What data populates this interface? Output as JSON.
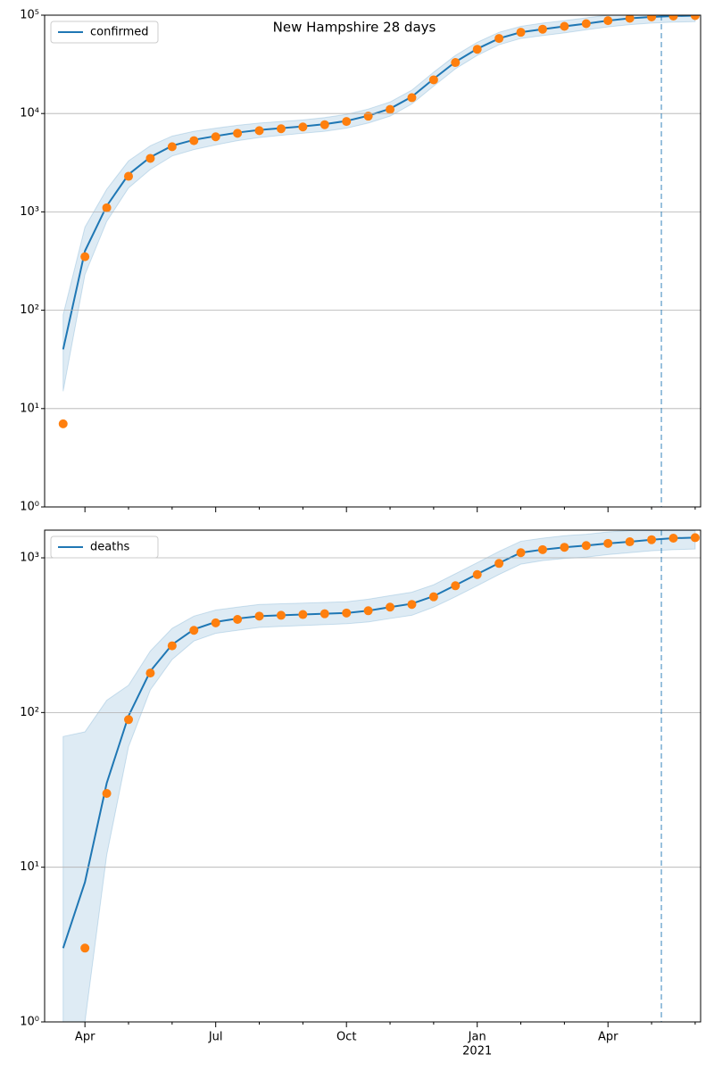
{
  "chart_data": [
    {
      "type": "line",
      "title": "New Hampshire 28 days",
      "log": true,
      "grid": "y",
      "legend": "upper left",
      "ylim": [
        1,
        100000
      ],
      "yticks": [
        {
          "value": 1,
          "label": "10⁰"
        },
        {
          "value": 10,
          "label": "10¹"
        },
        {
          "value": 100,
          "label": "10²"
        },
        {
          "value": 1000,
          "label": "10³"
        },
        {
          "value": 10000,
          "label": "10⁴"
        },
        {
          "value": 100000,
          "label": "10⁵"
        }
      ],
      "series": [
        {
          "name": "confirmed",
          "color": "#1f77b4",
          "values": [
            40,
            400,
            1150,
            2400,
            3600,
            4700,
            5400,
            5900,
            6400,
            6800,
            7100,
            7400,
            7800,
            8400,
            9500,
            11200,
            14800,
            22500,
            33500,
            45500,
            58000,
            67000,
            72000,
            77000,
            82000,
            88000,
            93000,
            96000,
            98000,
            99000
          ]
        },
        {
          "color": "#ff7f0e",
          "style": "marker",
          "values": [
            7,
            350,
            1100,
            2300,
            3500,
            4600,
            5300,
            5800,
            6300,
            6700,
            7000,
            7300,
            7700,
            8300,
            9400,
            11000,
            14500,
            22000,
            33000,
            45000,
            58000,
            67000,
            72000,
            77000,
            82000,
            88000,
            93000,
            96000,
            98000,
            99000
          ]
        }
      ],
      "band": {
        "color": "#1f77b4",
        "lower": [
          15,
          230,
          800,
          1750,
          2700,
          3700,
          4300,
          4800,
          5300,
          5700,
          6000,
          6300,
          6600,
          7100,
          8000,
          9400,
          12500,
          19000,
          28500,
          39000,
          50000,
          58000,
          62000,
          66000,
          71000,
          76000,
          80000,
          83000,
          85000,
          86000
        ],
        "upper": [
          90,
          700,
          1700,
          3300,
          4700,
          5900,
          6600,
          7100,
          7600,
          8000,
          8300,
          8600,
          9100,
          9800,
          11100,
          13100,
          17300,
          26300,
          39000,
          53000,
          67000,
          77000,
          83000,
          88000,
          94000,
          100000,
          100000,
          100000,
          100000,
          100000
        ]
      }
    },
    {
      "type": "line",
      "log": true,
      "grid": "y",
      "legend": "upper left",
      "categories": [
        null,
        "Apr",
        null,
        null,
        null,
        null,
        null,
        "Jul",
        null,
        null,
        null,
        null,
        null,
        "Oct",
        null,
        null,
        null,
        null,
        null,
        "Jan",
        null,
        null,
        null,
        null,
        null,
        "Apr",
        null,
        null,
        null,
        null
      ],
      "year_label": "2021",
      "ylim": [
        1,
        1510
      ],
      "yticks": [
        {
          "value": 1,
          "label": "10⁰"
        },
        {
          "value": 10,
          "label": "10¹"
        },
        {
          "value": 100,
          "label": "10²"
        },
        {
          "value": 1000,
          "label": "10³"
        }
      ],
      "series": [
        {
          "name": "deaths",
          "color": "#1f77b4",
          "values": [
            3,
            8,
            35,
            95,
            185,
            275,
            345,
            385,
            405,
            420,
            425,
            430,
            435,
            440,
            455,
            480,
            505,
            565,
            665,
            785,
            925,
            1080,
            1130,
            1170,
            1200,
            1240,
            1270,
            1310,
            1340,
            1350
          ]
        },
        {
          "color": "#ff7f0e",
          "style": "marker",
          "values": [
            null,
            3,
            30,
            90,
            180,
            270,
            340,
            380,
            400,
            420,
            425,
            430,
            435,
            440,
            455,
            480,
            500,
            560,
            660,
            780,
            920,
            1080,
            1130,
            1170,
            1200,
            1240,
            1270,
            1310,
            1340,
            1350
          ]
        }
      ],
      "band": {
        "color": "#1f77b4",
        "lower": [
          1,
          1,
          12,
          60,
          140,
          220,
          290,
          325,
          340,
          355,
          360,
          365,
          370,
          375,
          385,
          405,
          425,
          480,
          560,
          660,
          780,
          910,
          960,
          990,
          1010,
          1050,
          1080,
          1110,
          1130,
          1140
        ],
        "upper": [
          70,
          75,
          120,
          150,
          250,
          350,
          420,
          460,
          480,
          500,
          505,
          510,
          515,
          520,
          540,
          570,
          600,
          670,
          790,
          930,
          1100,
          1280,
          1340,
          1390,
          1420,
          1470,
          1500,
          1500,
          1500,
          1500
        ]
      }
    }
  ]
}
